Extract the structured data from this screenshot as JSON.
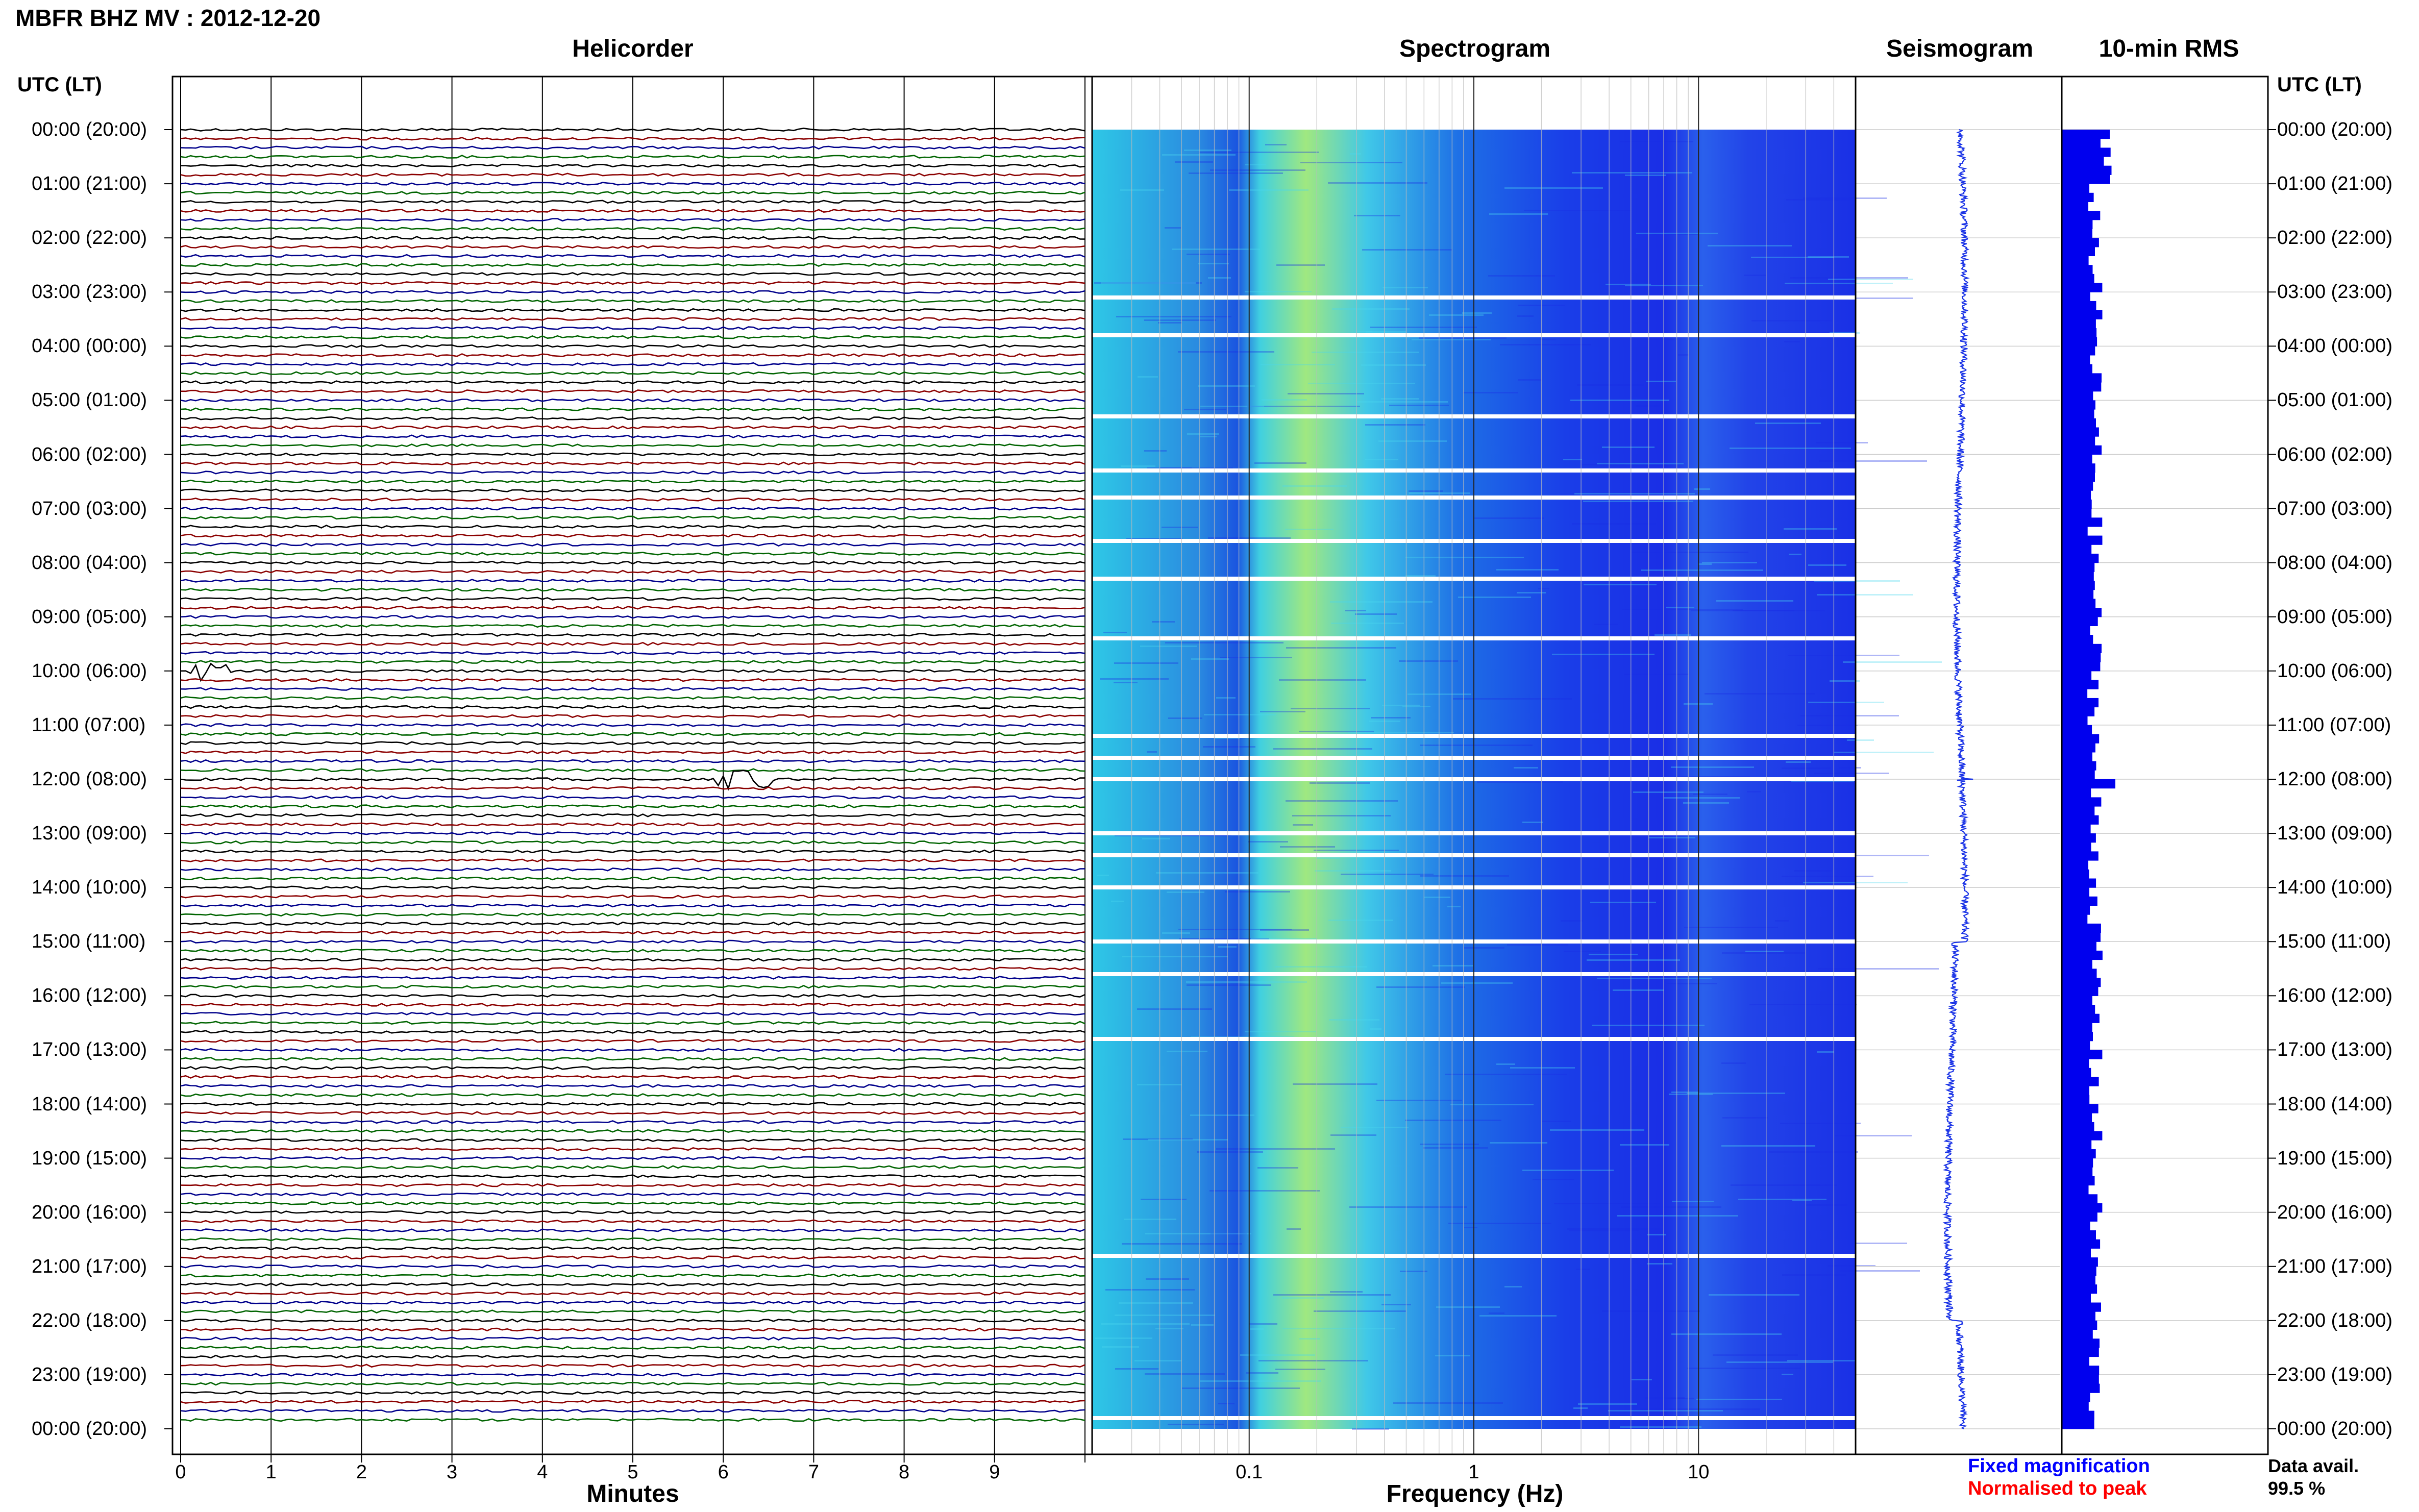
{
  "page": {
    "title": "MBFR BHZ MV : 2012-12-20",
    "panels": {
      "helicorder": "Helicorder",
      "spectrogram": "Spectrogram",
      "seismogram": "Seismogram",
      "rms": "10-min RMS"
    },
    "utc_header": "UTC (LT)",
    "time_labels": [
      "00:00 (20:00)",
      "01:00 (21:00)",
      "02:00 (22:00)",
      "03:00 (23:00)",
      "04:00 (00:00)",
      "05:00 (01:00)",
      "06:00 (02:00)",
      "07:00 (03:00)",
      "08:00 (04:00)",
      "09:00 (05:00)",
      "10:00 (06:00)",
      "11:00 (07:00)",
      "12:00 (08:00)",
      "13:00 (09:00)",
      "14:00 (10:00)",
      "15:00 (11:00)",
      "16:00 (12:00)",
      "17:00 (13:00)",
      "18:00 (14:00)",
      "19:00 (15:00)",
      "20:00 (16:00)",
      "21:00 (17:00)",
      "22:00 (18:00)",
      "23:00 (19:00)",
      "00:00 (20:00)"
    ],
    "legend": {
      "fixed": "Fixed magnification",
      "normalised": "Normalised to peak"
    },
    "data_avail": {
      "label": "Data avail.",
      "value": "99.5 %"
    },
    "colors": {
      "trace_cycle": [
        "#000000",
        "#8b0000",
        "#00008b",
        "#006400"
      ],
      "spectrogram_low": "#1a2ee6",
      "spectrogram_mid": "#2ec8e6",
      "spectrogram_high": "#c8f050",
      "rms_bar": "#0000ee",
      "seismogram_trace": "#1a33e6",
      "legend_fixed": "#0000ff",
      "legend_normalised": "#ff0000"
    }
  },
  "chart_data": [
    {
      "type": "line",
      "panel": "helicorder",
      "xlabel": "Minutes",
      "x_ticks": [
        "0",
        "1",
        "2",
        "3",
        "4",
        "5",
        "6",
        "7",
        "8",
        "9"
      ],
      "xlim": [
        0,
        10
      ],
      "lines_per_hour": 6,
      "hours": 24,
      "notable_events": [
        {
          "hour": 12,
          "minute": 6.2,
          "description": "event"
        },
        {
          "hour": 10,
          "minute": 0.4,
          "description": "spike"
        }
      ]
    },
    {
      "type": "heatmap",
      "panel": "spectrogram",
      "xlabel": "Frequency (Hz)",
      "x_scale": "log",
      "x_ticks": [
        "0.1",
        "1",
        "10"
      ],
      "xlim": [
        0.02,
        50
      ],
      "data_gaps_hours": [
        3.1,
        3.8,
        5.3,
        6.3,
        6.8,
        7.6,
        8.3,
        9.4,
        11.2,
        11.6,
        12.0,
        13.0,
        13.4,
        14.0,
        15.0,
        15.6,
        16.8,
        20.8,
        23.8
      ]
    },
    {
      "type": "line",
      "panel": "seismogram",
      "hours": 24
    },
    {
      "type": "bar",
      "panel": "rms",
      "orientation": "horizontal",
      "interval_minutes": 10,
      "peak_hour": 12.0
    }
  ]
}
